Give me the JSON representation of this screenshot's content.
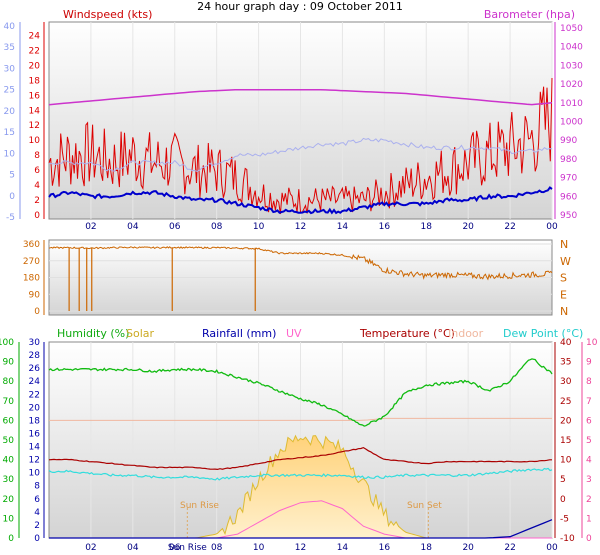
{
  "title": "24 hour graph day : 09 October 2011",
  "colors": {
    "windspeed": "#dd0000",
    "wind_avg": "#0000cc",
    "barometer": "#cc33cc",
    "temperature": "#aa0000",
    "humidity": "#11bb11",
    "solar": "#ddbb33",
    "solar_fill": "#ffd98a",
    "rainfall": "#0000aa",
    "uv": "#ff66cc",
    "indoor": "#f0b8a0",
    "dewpoint": "#33dddd",
    "direction": "#cc6600",
    "gust_light": "#aab0ee",
    "axis_blue": "#8899ee",
    "axis_green": "#00aa00",
    "axis_pink": "#ee4499",
    "axis_brown": "#cc6600"
  },
  "chart_data": [
    {
      "type": "line",
      "panel": "wind-pressure",
      "left_title": "Windspeed (kts)",
      "right_title": "Barometer (hpa)",
      "x_ticks": [
        "02",
        "04",
        "06",
        "08",
        "10",
        "12",
        "14",
        "16",
        "18",
        "20",
        "22",
        "00"
      ],
      "left_outer_ticks": [
        "40",
        "35",
        "30",
        "25",
        "20",
        "15",
        "10",
        "5",
        "0",
        "-5"
      ],
      "left_inner_ticks": [
        "24",
        "22",
        "20",
        "18",
        "16",
        "14",
        "12",
        "10",
        "8",
        "6",
        "4",
        "2",
        "0"
      ],
      "right_ticks": [
        "1050",
        "1040",
        "1030",
        "1020",
        "1010",
        "1000",
        "990",
        "980",
        "970",
        "960",
        "950"
      ],
      "ylim": [
        0,
        25
      ],
      "x": [
        0,
        1,
        2,
        3,
        4,
        5,
        6,
        7,
        8,
        9,
        10,
        11,
        12,
        13,
        14,
        15,
        16,
        17,
        18,
        19,
        20,
        21,
        22,
        23,
        24
      ],
      "series": [
        {
          "name": "Windspeed",
          "values": [
            7,
            8,
            8,
            7,
            8,
            7,
            7,
            6,
            6,
            5,
            3,
            2,
            2,
            2,
            2,
            2,
            3,
            4,
            5,
            6,
            7,
            8,
            9,
            10,
            13
          ]
        },
        {
          "name": "Barometer",
          "values": [
            1009,
            1010,
            1011,
            1012,
            1013,
            1014,
            1015,
            1016,
            1016.5,
            1017,
            1017,
            1017,
            1017,
            1017,
            1016.5,
            1016,
            1015.5,
            1015,
            1014,
            1013,
            1012,
            1011,
            1010,
            1009,
            1010
          ]
        },
        {
          "name": "average",
          "values": [
            2.5,
            3,
            2.5,
            2.5,
            3,
            3,
            2.5,
            2,
            2,
            1.5,
            1,
            0.5,
            0.5,
            0.5,
            0.5,
            1,
            1.5,
            1.5,
            1.5,
            2,
            2,
            2.5,
            2.5,
            3,
            3.5
          ]
        },
        {
          "name": "gust",
          "values": [
            7,
            7,
            7,
            6,
            7,
            7,
            7,
            6,
            7,
            8,
            8,
            8.5,
            9,
            9.5,
            9.5,
            10,
            10,
            9.5,
            9,
            9,
            9,
            9,
            8.5,
            8.5,
            9
          ]
        }
      ]
    },
    {
      "type": "line",
      "panel": "wind-direction",
      "left_ticks": [
        "360",
        "270",
        "180",
        "90",
        "0"
      ],
      "right_ticks": [
        "N",
        "W",
        "S",
        "E",
        "N"
      ],
      "ylim": [
        0,
        360
      ],
      "x": [
        0,
        1,
        2,
        3,
        4,
        5,
        6,
        7,
        8,
        9,
        10,
        11,
        12,
        13,
        14,
        15,
        16,
        17,
        18,
        19,
        20,
        21,
        22,
        23,
        24
      ],
      "series": [
        {
          "name": "direction",
          "values": [
            340,
            340,
            338,
            340,
            342,
            340,
            342,
            340,
            340,
            338,
            335,
            310,
            310,
            310,
            300,
            280,
            220,
            200,
            190,
            195,
            190,
            185,
            190,
            195,
            200
          ]
        }
      ]
    },
    {
      "type": "line",
      "panel": "weather",
      "legend": [
        "Humidity (%)",
        "Solar",
        "Rainfall (mm)",
        "UV",
        "Temperature (°C)",
        "Indoor",
        "Dew Point (°C)"
      ],
      "x_ticks": [
        "02",
        "04",
        "06",
        "08",
        "10",
        "12",
        "14",
        "16",
        "18",
        "20",
        "22",
        "00"
      ],
      "sun_rise_label": "Sun Rise",
      "sun_set_label": "Sun Set",
      "humidity_ticks": [
        "100",
        "90",
        "80",
        "70",
        "60",
        "50",
        "40",
        "30",
        "20",
        "10",
        "0"
      ],
      "rainfall_ticks": [
        "30",
        "28",
        "26",
        "24",
        "22",
        "20",
        "18",
        "16",
        "14",
        "12",
        "10",
        "8",
        "6",
        "4",
        "2",
        "0"
      ],
      "temperature_ticks": [
        "40",
        "35",
        "30",
        "25",
        "20",
        "15",
        "10",
        "5",
        "0",
        "-5",
        "-10"
      ],
      "uv_ticks": [
        "10",
        "9",
        "8",
        "7",
        "6",
        "5",
        "4",
        "3",
        "2",
        "1",
        "0"
      ],
      "x": [
        0,
        1,
        2,
        3,
        4,
        5,
        6,
        7,
        8,
        9,
        10,
        11,
        12,
        13,
        14,
        15,
        16,
        17,
        18,
        19,
        20,
        21,
        22,
        23,
        24
      ],
      "series": [
        {
          "name": "Humidity",
          "values": [
            86,
            86,
            86,
            86,
            86,
            85,
            86,
            86,
            85,
            82,
            79,
            75,
            71,
            68,
            63,
            57,
            62,
            74,
            78,
            79,
            80,
            75,
            80,
            92,
            84
          ]
        },
        {
          "name": "Temperature",
          "values": [
            10,
            10,
            9.5,
            9,
            8.5,
            8,
            8,
            8,
            7.5,
            8,
            9,
            10,
            10.5,
            11,
            12,
            13,
            10,
            9.5,
            9,
            9.5,
            9.5,
            9.5,
            9.5,
            9.5,
            10
          ]
        },
        {
          "name": "Indoor",
          "values": [
            20,
            20,
            20,
            20,
            20,
            20,
            20,
            20,
            20,
            20,
            20,
            20,
            20,
            20,
            20,
            20,
            20.5,
            20.5,
            20.5,
            20.5,
            20.5,
            20.5,
            20.5,
            20.5,
            20.5
          ]
        },
        {
          "name": "Dew Point",
          "values": [
            7,
            7,
            6.5,
            6,
            6,
            5.5,
            5.5,
            5.5,
            5,
            5.5,
            6,
            6,
            6,
            6,
            6,
            5.5,
            5.5,
            6,
            6,
            6,
            6,
            6.5,
            7,
            7.5,
            7.5
          ]
        },
        {
          "name": "Solar",
          "values": [
            0,
            0,
            0,
            0,
            0,
            0,
            0,
            0,
            2,
            12,
            30,
            45,
            52,
            50,
            45,
            28,
            12,
            3,
            0,
            0,
            0,
            0,
            0,
            0,
            0
          ]
        },
        {
          "name": "UV",
          "values": [
            0,
            0,
            0,
            0,
            0,
            0,
            0,
            0,
            0,
            0.2,
            0.8,
            1.4,
            1.8,
            1.9,
            1.5,
            0.6,
            0.2,
            0,
            0,
            0,
            0,
            0,
            0,
            0,
            0
          ]
        },
        {
          "name": "Rainfall",
          "values": [
            0,
            0,
            0,
            0,
            0,
            0,
            0,
            0,
            0,
            0,
            0,
            0,
            0,
            0,
            0,
            0,
            0,
            0,
            0,
            0,
            0,
            0,
            0.2,
            1.5,
            2.8
          ]
        }
      ]
    }
  ]
}
